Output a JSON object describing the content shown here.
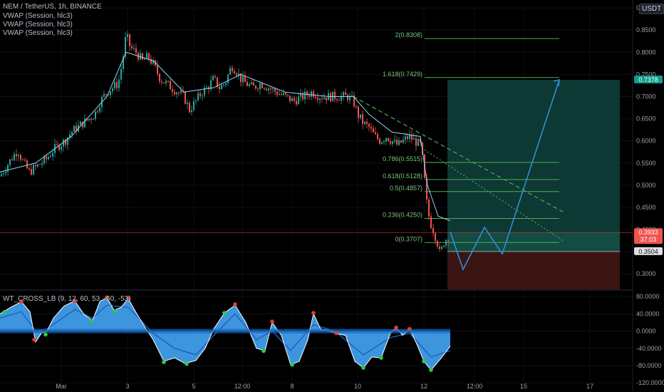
{
  "header": {
    "symbol": "NEM / TetherUS, 1h, BINANCE",
    "indicators": [
      "VWAP (Session, hlc3)",
      "VWAP (Session, hlc3)",
      "VWAP (Session, hlc3)"
    ],
    "currency": "USDT"
  },
  "oscillator": {
    "label": "WT_CROSS_LB (9, 12, 60, 53, -60, -53)"
  },
  "price_tags": {
    "target": "0.7378",
    "current": "0.3933",
    "countdown": "37:03",
    "stop": "0.3504"
  },
  "colors": {
    "bull": "#26a69a",
    "bear": "#ef5350",
    "fib": "#4caf50",
    "projection": "#2f8fd6",
    "wave": "#42a5f5",
    "profit_zone": "#0e3b36",
    "loss_zone": "#3b1414",
    "current_line": "#e53935"
  },
  "chart_data": [
    {
      "type": "candlestick",
      "title": "",
      "x_ticks": [
        "Mar",
        "3",
        "5",
        "12:00",
        "8",
        "10",
        "12",
        "12:00",
        "15",
        "17"
      ],
      "y_ticks": [
        "0.9000",
        "0.8500",
        "0.8000",
        "0.7500",
        "0.7000",
        "0.6500",
        "0.6000",
        "0.5500",
        "0.5000",
        "0.4500",
        "0.4000",
        "0.3500",
        "0.3000"
      ],
      "ylim": [
        0.265,
        0.905
      ],
      "price_path": [
        [
          0,
          0.52
        ],
        [
          8,
          0.54
        ],
        [
          16,
          0.56
        ],
        [
          25,
          0.58
        ],
        [
          33,
          0.55
        ],
        [
          41,
          0.53
        ],
        [
          50,
          0.54
        ],
        [
          58,
          0.55
        ],
        [
          66,
          0.56
        ],
        [
          75,
          0.58
        ],
        [
          83,
          0.59
        ],
        [
          91,
          0.6
        ],
        [
          100,
          0.62
        ],
        [
          108,
          0.63
        ],
        [
          116,
          0.64
        ],
        [
          125,
          0.65
        ],
        [
          133,
          0.66
        ],
        [
          141,
          0.69
        ],
        [
          150,
          0.71
        ],
        [
          158,
          0.72
        ],
        [
          166,
          0.73
        ],
        [
          172,
          0.78
        ],
        [
          177,
          0.84
        ],
        [
          183,
          0.81
        ],
        [
          191,
          0.8
        ],
        [
          200,
          0.78
        ],
        [
          208,
          0.79
        ],
        [
          216,
          0.77
        ],
        [
          225,
          0.74
        ],
        [
          233,
          0.73
        ],
        [
          241,
          0.72
        ],
        [
          250,
          0.71
        ],
        [
          258,
          0.7
        ],
        [
          266,
          0.67
        ],
        [
          275,
          0.69
        ],
        [
          283,
          0.71
        ],
        [
          291,
          0.72
        ],
        [
          300,
          0.74
        ],
        [
          308,
          0.72
        ],
        [
          316,
          0.73
        ],
        [
          325,
          0.77
        ],
        [
          331,
          0.76
        ],
        [
          338,
          0.74
        ],
        [
          345,
          0.73
        ],
        [
          355,
          0.72
        ],
        [
          366,
          0.73
        ],
        [
          377,
          0.72
        ],
        [
          388,
          0.71
        ],
        [
          400,
          0.7
        ],
        [
          412,
          0.69
        ],
        [
          425,
          0.7
        ],
        [
          438,
          0.71
        ],
        [
          450,
          0.7
        ],
        [
          462,
          0.7
        ],
        [
          475,
          0.7
        ],
        [
          488,
          0.7
        ],
        [
          496,
          0.69
        ],
        [
          502,
          0.66
        ],
        [
          510,
          0.64
        ],
        [
          518,
          0.63
        ],
        [
          526,
          0.61
        ],
        [
          534,
          0.6
        ],
        [
          542,
          0.61
        ],
        [
          550,
          0.6
        ],
        [
          558,
          0.59
        ],
        [
          566,
          0.6
        ],
        [
          574,
          0.61
        ],
        [
          582,
          0.6
        ],
        [
          590,
          0.59
        ],
        [
          594,
          0.55
        ],
        [
          598,
          0.47
        ],
        [
          603,
          0.42
        ],
        [
          608,
          0.4
        ],
        [
          614,
          0.37
        ],
        [
          618,
          0.34
        ],
        [
          622,
          0.37
        ],
        [
          627,
          0.38
        ],
        [
          632,
          0.39
        ]
      ],
      "vwap_path": [
        [
          0,
          0.53
        ],
        [
          50,
          0.55
        ],
        [
          100,
          0.61
        ],
        [
          150,
          0.7
        ],
        [
          177,
          0.8
        ],
        [
          216,
          0.78
        ],
        [
          258,
          0.71
        ],
        [
          300,
          0.72
        ],
        [
          338,
          0.75
        ],
        [
          400,
          0.71
        ],
        [
          462,
          0.7
        ],
        [
          496,
          0.7
        ],
        [
          518,
          0.66
        ],
        [
          550,
          0.62
        ],
        [
          590,
          0.61
        ],
        [
          600,
          0.5
        ],
        [
          615,
          0.43
        ],
        [
          632,
          0.42
        ]
      ],
      "fib_levels": [
        {
          "label": "2(0.8308)",
          "value": 0.8308
        },
        {
          "label": "1.618(0.7429)",
          "value": 0.7429
        },
        {
          "label": "0.786(0.5515)",
          "value": 0.5515
        },
        {
          "label": "0.618(0.5128)",
          "value": 0.5128
        },
        {
          "label": "0.5(0.4857)",
          "value": 0.4857
        },
        {
          "label": "0.236(0.4250)",
          "value": 0.425
        },
        {
          "label": "0(0.3707)",
          "value": 0.3707
        }
      ],
      "position": {
        "entry": 0.3933,
        "target": 0.7378,
        "stop": 0.3504,
        "current": 0.3933
      },
      "trendlines": [
        {
          "style": "dashed",
          "from": [
            496,
            0.7
          ],
          "to": [
            790,
            0.44
          ]
        },
        {
          "style": "dotted",
          "from": [
            596,
            0.58
          ],
          "to": [
            790,
            0.375
          ]
        }
      ],
      "projection_path": [
        [
          632,
          0.395
        ],
        [
          650,
          0.31
        ],
        [
          680,
          0.405
        ],
        [
          705,
          0.345
        ],
        [
          785,
          0.7378
        ]
      ]
    },
    {
      "type": "area",
      "title": "WT_CROSS_LB (9, 12, 60, 53, -60, -53)",
      "y_ticks": [
        "80.0000",
        "40.0000",
        "0.0000",
        "-40.0000",
        "-80.0000",
        "-120.0000"
      ],
      "ylim": [
        -118,
        90
      ],
      "wave_path": [
        [
          0,
          40
        ],
        [
          15,
          55
        ],
        [
          30,
          68
        ],
        [
          42,
          45
        ],
        [
          50,
          -25
        ],
        [
          58,
          -5
        ],
        [
          66,
          0
        ],
        [
          75,
          30
        ],
        [
          90,
          58
        ],
        [
          105,
          70
        ],
        [
          118,
          38
        ],
        [
          130,
          25
        ],
        [
          140,
          68
        ],
        [
          150,
          78
        ],
        [
          160,
          48
        ],
        [
          170,
          55
        ],
        [
          180,
          75
        ],
        [
          192,
          40
        ],
        [
          205,
          5
        ],
        [
          215,
          -20
        ],
        [
          230,
          -70
        ],
        [
          245,
          -62
        ],
        [
          260,
          -75
        ],
        [
          275,
          -68
        ],
        [
          288,
          -40
        ],
        [
          300,
          5
        ],
        [
          315,
          42
        ],
        [
          330,
          60
        ],
        [
          345,
          20
        ],
        [
          360,
          -40
        ],
        [
          372,
          -45
        ],
        [
          382,
          20
        ],
        [
          395,
          -10
        ],
        [
          408,
          -78
        ],
        [
          420,
          -70
        ],
        [
          432,
          -20
        ],
        [
          440,
          40
        ],
        [
          450,
          5
        ],
        [
          460,
          2
        ],
        [
          470,
          -5
        ],
        [
          485,
          -10
        ],
        [
          498,
          -70
        ],
        [
          510,
          -85
        ],
        [
          522,
          -60
        ],
        [
          535,
          -62
        ],
        [
          548,
          -5
        ],
        [
          556,
          8
        ],
        [
          565,
          -10
        ],
        [
          575,
          5
        ],
        [
          585,
          -30
        ],
        [
          595,
          -70
        ],
        [
          605,
          -90
        ],
        [
          618,
          -65
        ],
        [
          632,
          -35
        ]
      ],
      "signal_path": [
        [
          0,
          30
        ],
        [
          30,
          45
        ],
        [
          50,
          0
        ],
        [
          66,
          5
        ],
        [
          105,
          50
        ],
        [
          130,
          30
        ],
        [
          150,
          60
        ],
        [
          180,
          55
        ],
        [
          215,
          -5
        ],
        [
          245,
          -40
        ],
        [
          275,
          -55
        ],
        [
          300,
          -10
        ],
        [
          330,
          40
        ],
        [
          360,
          -20
        ],
        [
          382,
          0
        ],
        [
          408,
          -45
        ],
        [
          440,
          15
        ],
        [
          470,
          0
        ],
        [
          510,
          -55
        ],
        [
          548,
          -15
        ],
        [
          575,
          -5
        ],
        [
          605,
          -60
        ],
        [
          632,
          -45
        ]
      ],
      "dots": [
        {
          "x": 6,
          "y": 44,
          "color": "#2ecc40"
        },
        {
          "x": 30,
          "y": 68,
          "color": "#e53935"
        },
        {
          "x": 48,
          "y": -20,
          "color": "#e53935"
        },
        {
          "x": 64,
          "y": -8,
          "color": "#2ecc40"
        },
        {
          "x": 105,
          "y": 70,
          "color": "#e53935"
        },
        {
          "x": 128,
          "y": 24,
          "color": "#2ecc40"
        },
        {
          "x": 150,
          "y": 78,
          "color": "#e53935"
        },
        {
          "x": 162,
          "y": 46,
          "color": "#2ecc40"
        },
        {
          "x": 180,
          "y": 76,
          "color": "#e53935"
        },
        {
          "x": 230,
          "y": -72,
          "color": "#2ecc40"
        },
        {
          "x": 262,
          "y": -76,
          "color": "#2ecc40"
        },
        {
          "x": 315,
          "y": 42,
          "color": "#2ecc40"
        },
        {
          "x": 330,
          "y": 62,
          "color": "#e53935"
        },
        {
          "x": 370,
          "y": -46,
          "color": "#2ecc40"
        },
        {
          "x": 382,
          "y": 22,
          "color": "#e53935"
        },
        {
          "x": 410,
          "y": -78,
          "color": "#2ecc40"
        },
        {
          "x": 440,
          "y": 42,
          "color": "#e53935"
        },
        {
          "x": 472,
          "y": -5,
          "color": "#e53935"
        },
        {
          "x": 510,
          "y": -85,
          "color": "#2ecc40"
        },
        {
          "x": 535,
          "y": -62,
          "color": "#2ecc40"
        },
        {
          "x": 556,
          "y": 8,
          "color": "#e53935"
        },
        {
          "x": 575,
          "y": 5,
          "color": "#e53935"
        },
        {
          "x": 595,
          "y": -70,
          "color": "#2ecc40"
        },
        {
          "x": 605,
          "y": -90,
          "color": "#2ecc40"
        }
      ]
    }
  ]
}
